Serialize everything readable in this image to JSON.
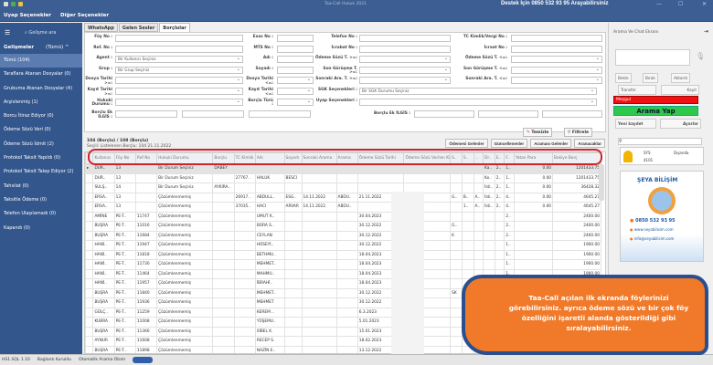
{
  "app": {
    "title": "Taa-Call Hukuk 2021",
    "support": "Destek İçin 0850 532 93 95 Arayabilirsiniz",
    "min": "—",
    "max": "☐",
    "close": "✕"
  },
  "menu": [
    "Uyap Seçenekler",
    "Diğer Seçenekler"
  ],
  "sidebar": {
    "search": "Gelişme ara",
    "header": "Gelişmeler",
    "filter": "(Tümü) ^",
    "items": [
      "Tümü (104)",
      "Taraflara Atanan Dosyalar (0)",
      "Grubuma Atanan Dosyalar (4)",
      "Arşivlenmiş (1)",
      "Borcu İtiraz Ediyor (0)",
      "Ödeme Sözü Veri (0)",
      "Ödeme Sözü İdmit (2)",
      "Protokol Taksit Yapıldı (0)",
      "Protokol Taksit Talep Ediyor (2)",
      "Tahsilat (0)",
      "Taksitle Ödeme (0)",
      "Telefon Ulaşılamadı (0)",
      "Kapandı (0)"
    ]
  },
  "tabs": [
    "WhatsApp",
    "Gelen Sesler",
    "Borçlular"
  ],
  "form": {
    "col1": [
      {
        "label": "Föy No :",
        "value": ""
      },
      {
        "label": "Ref. No :",
        "value": ""
      },
      {
        "label": "Agent :",
        "value": "Bir Kullanıcı Seçiniz",
        "dd": true
      },
      {
        "label": "Grup :",
        "value": "Bir Grup Seçiniz",
        "dd": true
      },
      {
        "label": "Dosya Tarihi >=:",
        "value": "",
        "dd": true
      },
      {
        "label": "Kayıt Tarihi >=:",
        "value": "",
        "dd": true
      },
      {
        "label": "Hukuki Durumu :",
        "value": "",
        "dd": true
      }
    ],
    "col2": [
      {
        "label": "Esas No :",
        "value": ""
      },
      {
        "label": "MTS No :",
        "value": ""
      },
      {
        "label": "Adı :",
        "value": ""
      },
      {
        "label": "Soyadı :",
        "value": ""
      },
      {
        "label": "Dosya Tarihi <=:",
        "value": "",
        "dd": true
      },
      {
        "label": "Kayıt Tarihi <=:",
        "value": "",
        "dd": true
      },
      {
        "label": "Borçlu Türü :",
        "value": "",
        "dd": true
      }
    ],
    "col3": [
      {
        "label": "Telefon No :",
        "value": ""
      },
      {
        "label": "İcrabat No :",
        "value": ""
      },
      {
        "label": "Ödeme Sözü T. >=:",
        "value": "",
        "dd": true
      },
      {
        "label": "Son Görüşme T. >=:",
        "value": "",
        "dd": true
      },
      {
        "label": "Sonraki Ara. T. >=:",
        "value": "",
        "dd": true
      },
      {
        "label": "SGK Seçenekleri :",
        "value": "Bir SGK Durumu Seçiniz",
        "dd": true
      },
      {
        "label": "Uyap Seçenekleri :",
        "value": "",
        "dd": true
      }
    ],
    "col4": [
      {
        "label": "TC Kimlik/Vergi No :",
        "value": ""
      },
      {
        "label": "İcraat No :",
        "value": ""
      },
      {
        "label": "Ödeme Sözü T. <=:",
        "value": "",
        "dd": true
      },
      {
        "label": "Son Görüşme T. <=:",
        "value": "",
        "dd": true
      },
      {
        "label": "Sonraki Ara. T. <=:",
        "value": "",
        "dd": true
      }
    ],
    "ekLabel": "Borçlu Ek İLGİS :",
    "ekLabel2": "Borçlu Ek İLGİS :",
    "clear": "Temizle",
    "filter": "Filtrele"
  },
  "actions": [
    "Ödemesi Gelenler",
    "Güncellenenler",
    "Araması Gelenler",
    "Aranacaklar"
  ],
  "list": {
    "summary": "104 (Borçlu) / 108 (Borçlu)",
    "sub": "Seçili: Listelenen Borçlu: 104 21.11.2022"
  },
  "table": {
    "columns": [
      "Kullanıcı",
      "Föy No",
      "Ref No",
      "Hukuki Durumu",
      "Borçlu",
      "TC Kimlik",
      "Adı",
      "Soyadı",
      "Sonraki Arama",
      "Arama",
      "Ödeme Sözü Tarihi",
      "Ödeme Sözü Verilen Kişi",
      "S..",
      "S..",
      "...",
      "Dr..",
      "E..",
      "F..",
      "Yatan Para",
      "Bakiye Borç"
    ],
    "rows": [
      [
        "DUR..",
        "13",
        "",
        "Bir Durum Seçiniz",
        "DABEY",
        "",
        "",
        "",
        "",
        "",
        "",
        "",
        "",
        "",
        "",
        "Ka..",
        "2..",
        "1..",
        "0.00",
        "1201433.75"
      ],
      [
        "DUR..",
        "13",
        "",
        "Bir Durum Seçiniz",
        "",
        "27767..",
        "HALUK",
        "BESCI",
        "",
        "",
        "",
        "",
        "",
        "",
        "",
        "Ko..",
        "2..",
        "1..",
        "0.00",
        "1201433.75"
      ],
      [
        "SULŞ..",
        "14",
        "",
        "Bir Durum Seçiniz",
        "AYKIRA..",
        "",
        "",
        "",
        "",
        "",
        "",
        "",
        "",
        "",
        "",
        "İsti..",
        "2..",
        "1..",
        "0.00",
        "36428.32"
      ],
      [
        "ERSA..",
        "13",
        "",
        "Çözümlenmemiş",
        "",
        "26917..",
        "ABDULL..",
        "ESG..",
        "14.11.2022",
        "ABDU..",
        "21.11.2022",
        "",
        "G..",
        "B..",
        "A..",
        "İsti..",
        "2..",
        "4..",
        "0.00",
        "4645.27"
      ],
      [
        "ERSA..",
        "13",
        "",
        "Çözümlenmemiş",
        "",
        "37035..",
        "HACI",
        "ARVAR",
        "14.11.2022",
        "ABDU..",
        "",
        "",
        "",
        "1..",
        "A..",
        "İsti..",
        "2..",
        "4..",
        "0.00",
        "4645.27"
      ],
      [
        "AMİNE",
        "PE-T..",
        "11747",
        "Çözümlenmemiş",
        "",
        "",
        "UMUT K..",
        "",
        "",
        "",
        "30.04.2023",
        "",
        "",
        "",
        "",
        "",
        "",
        "2..",
        "",
        "2400.00"
      ],
      [
        "BUŞRA",
        "PE-T..",
        "11016",
        "Çözümlenmemiş",
        "",
        "",
        "BORA S..",
        "",
        "",
        "",
        "30.12.2022",
        "",
        "G..",
        "",
        "",
        "",
        "",
        "2..",
        "",
        "2400.00"
      ],
      [
        "BUŞRA",
        "PE-T..",
        "11684",
        "Çözümlenmemiş",
        "",
        "",
        "CEYLAN",
        "",
        "",
        "",
        "30.12.2022",
        "",
        "K",
        "",
        "",
        "",
        "",
        "2..",
        "",
        "2400.00"
      ],
      [
        "HANİ..",
        "PE-T..",
        "11947",
        "Çözümlenmemiş",
        "",
        "",
        "HÜSEYİ..",
        "",
        "",
        "",
        "30.12.2022",
        "",
        "",
        "",
        "",
        "",
        "",
        "1..",
        "",
        "1900.00"
      ],
      [
        "HANİ..",
        "PE-T..",
        "11818",
        "Çözümlenmemiş",
        "",
        "",
        "BETHMU..",
        "",
        "",
        "",
        "18.04.2023",
        "",
        "",
        "",
        "",
        "",
        "",
        "1..",
        "",
        "1900.00"
      ],
      [
        "HANİ..",
        "PE-T..",
        "11730",
        "Çözümlenmemiş",
        "",
        "",
        "MEHMET..",
        "",
        "",
        "",
        "18.04.2023",
        "",
        "",
        "",
        "",
        "",
        "",
        "1..",
        "",
        "1900.00"
      ],
      [
        "HANİ..",
        "PE-T..",
        "11464",
        "Çözümlenmemiş",
        "",
        "",
        "MAHMU..",
        "",
        "",
        "",
        "18.04.2023",
        "",
        "",
        "",
        "",
        "",
        "",
        "1..",
        "",
        "1900.00"
      ],
      [
        "HANİ..",
        "PE-T..",
        "11957",
        "Çözümlenmemiş",
        "",
        "",
        "İBRAHİ..",
        "",
        "",
        "",
        "18.04.2023",
        "",
        "",
        "",
        "",
        "",
        "",
        "1..",
        "",
        ""
      ],
      [
        "BUŞRA",
        "PE-T..",
        "11840",
        "Çözümlenmemiş",
        "",
        "",
        "MEHMET..",
        "",
        "",
        "",
        "30.12.2022",
        "",
        "SK",
        "",
        "",
        "",
        "",
        "1..",
        "",
        ""
      ],
      [
        "BUŞRA",
        "PE-T..",
        "11936",
        "Çözümlenmemiş",
        "",
        "",
        "MEHMET",
        "",
        "",
        "",
        "30.12.2022",
        "",
        "",
        "",
        "",
        "",
        "",
        "1..",
        "",
        ""
      ],
      [
        "GÜLÇ..",
        "PE-T..",
        "11259",
        "Çözümlenmemiş",
        "",
        "",
        "KEREM ..",
        "",
        "",
        "",
        "6.3.2023",
        "",
        "",
        "",
        "",
        "",
        "",
        "1..",
        "",
        ""
      ],
      [
        "KUBRA",
        "PE-T..",
        "11008",
        "Çözümlenmemiş",
        "",
        "",
        "YÜŞEMU..",
        "",
        "",
        "",
        "5.01.2023",
        "",
        "",
        "",
        "",
        "",
        "",
        "1..",
        "",
        ""
      ],
      [
        "BUŞRA",
        "PE-T..",
        "11366",
        "Çözümlenmemiş",
        "",
        "",
        "SİBEL K.",
        "",
        "",
        "",
        "15.01.2023",
        "",
        "",
        "",
        "",
        "",
        "",
        "1..",
        "",
        ""
      ],
      [
        "AYNUR",
        "PE-T..",
        "11608",
        "Çözümlenmemiş",
        "",
        "",
        "RECEP S.",
        "",
        "",
        "",
        "18.02.2023",
        "",
        "",
        "",
        "",
        "",
        "",
        "1..",
        "",
        ""
      ],
      [
        "BUŞRA",
        "PE-T..",
        "11898",
        "Çözümlenmemiş",
        "",
        "",
        "NAZİN E..",
        "",
        "",
        "",
        "13.12.2022",
        "",
        "",
        "",
        "",
        "",
        "",
        "1..",
        "",
        ""
      ]
    ]
  },
  "right": {
    "title": "Arama Ve Chat Ekranı",
    "btns": [
      "Bekle",
      "Bırak",
      "Aktardı",
      "Transfer",
      "Kayıt"
    ],
    "status": "Meşgul",
    "call": "Arama Yap",
    "newrec": "Yeni kaydet",
    "settings": "Ayarlar",
    "agent": "SYS",
    "agentSub": "4101",
    "agentState": "Dışarıda",
    "logo": {
      "brand": "ŞEYA BİLİŞİM",
      "phone": "0850 532 93 95",
      "web": "www.seyabilisim.com",
      "mail": "info@seyabilisim.com"
    }
  },
  "status": {
    "version": "HS1.SQL 1.10",
    "conn": "Bağlantı Kuruldu",
    "auto": "Otomatik Arama Otom"
  },
  "callout": "Taa-Call açılan ilk ekranda föylerinizi görebilirsiniz. ayrıca ödeme sözü ve bir çok föy özelliğini işaretli alanda gösterildiği gibi sıralayabilirsiniz.",
  "colors": {
    "accent": "#33568d",
    "highlight": "#d0232a",
    "callout": "#f07a2a",
    "callBtn": "#2fc84a",
    "busy": "#ee1111"
  }
}
